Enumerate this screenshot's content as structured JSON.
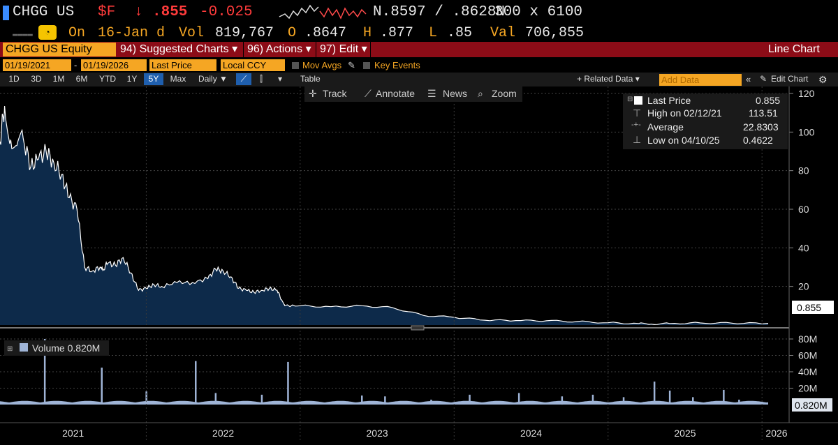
{
  "header": {
    "ticker": "CHGG US",
    "currency_flag": "$F",
    "arrow": "↓",
    "last": ".855",
    "change": "-0.025",
    "bid_ask": "N.8597 / .8628N",
    "size": "300 x 6100",
    "on_label": "On",
    "date": "16-Jan d",
    "vol_label": "Vol",
    "vol": "819,767",
    "o_label": "O",
    "open": ".8647",
    "h_label": "H",
    "high": ".877",
    "l_label": "L",
    "low": ".85",
    "val_label": "Val",
    "val": "706,855",
    "dashes": "▬▬▬▬"
  },
  "menubar": {
    "equity": "CHGG US Equity",
    "suggested": "94) Suggested Charts ▾",
    "actions": "96) Actions ▾",
    "edit": "97) Edit ▾",
    "chart_type": "Line Chart"
  },
  "controls": {
    "start_date": "01/19/2021",
    "dash": "-",
    "end_date": "01/19/2026",
    "field": "Last Price",
    "ccy": "Local CCY",
    "mov_avgs": "Mov Avgs",
    "key_events": "Key Events",
    "periods": [
      "1D",
      "3D",
      "1M",
      "6M",
      "YTD",
      "1Y",
      "5Y",
      "Max"
    ],
    "active_period": "5Y",
    "frequency": "Daily ▼",
    "table": "Table",
    "related": "+ Related Data ▾",
    "add_data_placeholder": "Add Data",
    "edit_chart": "Edit Chart"
  },
  "toolbar": {
    "track": "Track",
    "annotate": "Annotate",
    "news": "News",
    "zoom": "Zoom"
  },
  "legend": {
    "last_price_label": "Last Price",
    "last_price": "0.855",
    "high_label": "High on 02/12/21",
    "high": "113.51",
    "average_label": "Average",
    "average": "22.8303",
    "low_label": "Low on 04/10/25",
    "low": "0.4622"
  },
  "volume_legend": "Volume 0.820M",
  "colors": {
    "amber": "#f5a623",
    "menubar": "#8c0c17",
    "price_fill": "#0d2a4a",
    "price_line": "#ffffff",
    "volume_bar": "#9fb4d6"
  },
  "chart_data": [
    {
      "type": "area",
      "ylim": [
        0,
        120
      ],
      "yticks": [
        "20",
        "40",
        "60",
        "80",
        "100",
        "120"
      ],
      "last_value_label": "0.855",
      "x_labels": [
        "2021",
        "2022",
        "2023",
        "2024",
        "2025",
        "2026"
      ],
      "x": [
        2021.05,
        2021.08,
        2021.12,
        2021.16,
        2021.2,
        2021.25,
        2021.3,
        2021.35,
        2021.4,
        2021.45,
        2021.5,
        2021.55,
        2021.6,
        2021.65,
        2021.7,
        2021.72,
        2021.75,
        2021.8,
        2021.85,
        2021.9,
        2021.95,
        2022.0,
        2022.05,
        2022.1,
        2022.2,
        2022.3,
        2022.4,
        2022.45,
        2022.5,
        2022.55,
        2022.6,
        2022.65,
        2022.7,
        2022.75,
        2022.8,
        2022.85,
        2022.88,
        2022.9,
        2023.0,
        2023.2,
        2023.4,
        2023.6,
        2023.8,
        2024.0,
        2024.2,
        2024.4,
        2024.6,
        2024.8,
        2025.0,
        2025.2,
        2025.28,
        2025.4,
        2025.6,
        2025.8,
        2026.04
      ],
      "values": [
        95,
        113.5,
        96,
        93,
        97,
        82,
        86,
        90,
        84,
        78,
        66,
        60,
        30,
        28,
        30,
        29,
        32,
        31,
        35,
        27,
        18,
        19,
        21,
        20,
        22,
        22,
        24,
        29,
        28,
        25,
        19,
        18,
        17,
        18,
        19,
        18,
        13,
        10,
        10,
        9.5,
        10,
        9,
        5,
        4,
        2.5,
        2.3,
        2.2,
        1.8,
        1.2,
        0.8,
        0.4622,
        0.8,
        1.1,
        1.0,
        0.855
      ]
    },
    {
      "type": "bar",
      "name": "Volume",
      "ylim": [
        0,
        80
      ],
      "yticks": [
        "20M",
        "40M",
        "60M",
        "80M"
      ],
      "last_value_label": "0.820M",
      "x": [
        2021.34,
        2021.71,
        2022.0,
        2022.32,
        2022.45,
        2022.75,
        2022.92,
        2023.4,
        2023.55,
        2023.85,
        2024.1,
        2024.42,
        2024.7,
        2024.9,
        2025.1,
        2025.3,
        2025.4,
        2025.55,
        2025.75,
        2025.85
      ],
      "values": [
        80,
        45,
        16,
        53,
        14,
        12,
        52,
        11,
        10,
        6,
        12,
        14,
        10,
        12,
        9,
        28,
        17,
        9,
        18,
        6
      ],
      "baseline": 2.5
    }
  ]
}
